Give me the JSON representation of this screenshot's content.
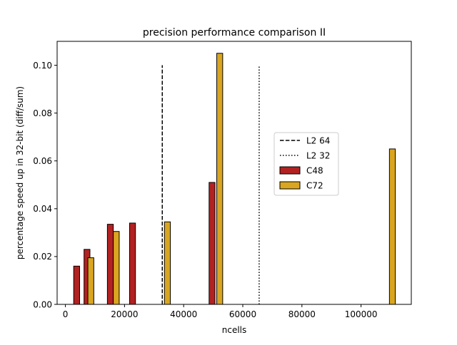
{
  "chart_data": {
    "type": "bar",
    "title": "precision performance comparison II",
    "xlabel": "ncells",
    "ylabel": "percentage speed up in 32-bit (diff/sum)",
    "xlim": [
      -2800,
      117000
    ],
    "ylim": [
      0,
      0.11
    ],
    "xticks": [
      0,
      20000,
      40000,
      60000,
      80000,
      100000
    ],
    "xtick_labels": [
      "0",
      "20000",
      "40000",
      "60000",
      "80000",
      "100000"
    ],
    "yticks": [
      0,
      0.02,
      0.04,
      0.06,
      0.08,
      0.1
    ],
    "ytick_labels": [
      "0.00",
      "0.02",
      "0.04",
      "0.06",
      "0.08",
      "0.10"
    ],
    "grid": false,
    "legend_position": "center-right",
    "vlines": [
      {
        "name": "L2 64",
        "x": 32768,
        "ymax": 0.1,
        "style": "dashed",
        "color": "#000000"
      },
      {
        "name": "L2 32",
        "x": 65536,
        "ymax": 0.1,
        "style": "dotted",
        "color": "#000000"
      }
    ],
    "bar_width": 2000,
    "series": [
      {
        "name": "C48",
        "color": "#b22222",
        "points": [
          {
            "x": 3800,
            "y": 0.016
          },
          {
            "x": 7300,
            "y": 0.023
          },
          {
            "x": 15200,
            "y": 0.0335
          },
          {
            "x": 22700,
            "y": 0.034
          },
          {
            "x": 49600,
            "y": 0.051
          }
        ]
      },
      {
        "name": "C72",
        "color": "#daa520",
        "points": [
          {
            "x": 8600,
            "y": 0.0195
          },
          {
            "x": 17200,
            "y": 0.0305
          },
          {
            "x": 34500,
            "y": 0.0345
          },
          {
            "x": 52200,
            "y": 0.105
          },
          {
            "x": 110600,
            "y": 0.065
          }
        ]
      }
    ]
  }
}
